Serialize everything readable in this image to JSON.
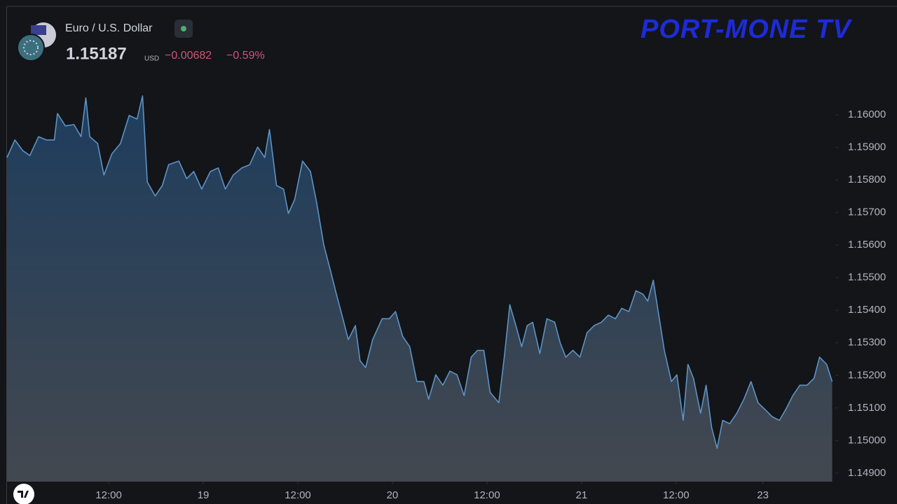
{
  "header": {
    "instrument": "Euro / U.S. Dollar",
    "price": "1.15187",
    "currency": "USD",
    "change": "−0.00682",
    "change_percent": "−0.59%"
  },
  "logo": "PORT-MONE TV",
  "chart_data": {
    "type": "area",
    "color": "#5e93c4",
    "x": [
      -0.9,
      0.1,
      1.1,
      2.0,
      3.1,
      4.1,
      5.1,
      5.5,
      6.5,
      7.6,
      8.5,
      9.1,
      9.6,
      10.6,
      11.4,
      12.4,
      13.5,
      14.6,
      15.6,
      16.3,
      16.9,
      17.9,
      18.8,
      19.6,
      20.9,
      21.9,
      22.8,
      23.8,
      24.9,
      25.9,
      26.8,
      27.8,
      28.9,
      29.9,
      30.9,
      31.8,
      32.4,
      33.3,
      34.2,
      34.8,
      35.6,
      36.6,
      37.6,
      38.4,
      39.3,
      40.0,
      40.9,
      41.6,
      42.4,
      43.3,
      43.9,
      44.6,
      45.5,
      46.7,
      47.6,
      48.4,
      49.3,
      50.2,
      51.1,
      52.0,
      52.6,
      53.5,
      54.4,
      55.3,
      56.2,
      57.1,
      58.0,
      58.8,
      59.6,
      60.4,
      61.5,
      62.2,
      62.9,
      63.8,
      64.4,
      65.1,
      65.8,
      66.7,
      67.6,
      68.6,
      69.3,
      70.0,
      70.9,
      71.8,
      72.7,
      73.6,
      74.5,
      75.4,
      76.3,
      77.1,
      78.0,
      78.9,
      79.8,
      80.4,
      81.1,
      81.8,
      82.5,
      83.4,
      84.1,
      84.9,
      85.5,
      86.2,
      87.1,
      87.8,
      88.5,
      89.2,
      89.9,
      90.8,
      91.7,
      92.6,
      93.5,
      94.4,
      95.3,
      96.2,
      97.1,
      97.9,
      98.8,
      99.7,
      100.6,
      101.5,
      102.2,
      103.1,
      103.8
    ],
    "values": [
      1.15869,
      1.15923,
      1.1589,
      1.15875,
      1.15933,
      1.15923,
      1.15923,
      1.16004,
      1.15966,
      1.1597,
      1.15933,
      1.16052,
      1.15933,
      1.15912,
      1.15815,
      1.1588,
      1.15912,
      1.15998,
      1.15987,
      1.16058,
      1.15794,
      1.15751,
      1.15783,
      1.15847,
      1.15858,
      1.15804,
      1.15826,
      1.15772,
      1.15826,
      1.15837,
      1.15772,
      1.15815,
      1.15837,
      1.15847,
      1.15901,
      1.15869,
      1.15955,
      1.15783,
      1.15772,
      1.15697,
      1.1574,
      1.15858,
      1.15826,
      1.15729,
      1.156,
      1.15535,
      1.15449,
      1.15385,
      1.1531,
      1.15353,
      1.15245,
      1.15224,
      1.1531,
      1.15374,
      1.15374,
      1.15396,
      1.1532,
      1.15288,
      1.15181,
      1.15181,
      1.15127,
      1.15202,
      1.1517,
      1.15213,
      1.15202,
      1.15138,
      1.15256,
      1.15277,
      1.15277,
      1.15148,
      1.15116,
      1.15256,
      1.15417,
      1.15342,
      1.15288,
      1.15353,
      1.15363,
      1.15267,
      1.15374,
      1.15363,
      1.15299,
      1.15256,
      1.15277,
      1.15256,
      1.15331,
      1.15353,
      1.15363,
      1.15385,
      1.15374,
      1.15406,
      1.15396,
      1.1546,
      1.15449,
      1.15428,
      1.15492,
      1.15385,
      1.15277,
      1.15181,
      1.15202,
      1.15062,
      1.15234,
      1.15191,
      1.15084,
      1.1517,
      1.15041,
      1.14976,
      1.15062,
      1.15052,
      1.15084,
      1.15127,
      1.15181,
      1.15116,
      1.15095,
      1.15073,
      1.15062,
      1.15095,
      1.15138,
      1.1517,
      1.1517,
      1.15191,
      1.15256,
      1.15234,
      1.15181
    ],
    "xlim": [
      -0.9,
      104.2
    ],
    "xticks": [
      {
        "value": 12,
        "label": "12:00"
      },
      {
        "value": 24,
        "label": "19"
      },
      {
        "value": 36,
        "label": "12:00"
      },
      {
        "value": 48,
        "label": "20"
      },
      {
        "value": 60,
        "label": "12:00"
      },
      {
        "value": 72,
        "label": "21"
      },
      {
        "value": 84,
        "label": "12:00"
      },
      {
        "value": 95,
        "label": "23"
      }
    ],
    "ylim": [
      1.14874,
      1.16331
    ],
    "yticks": [
      {
        "value": 1.149,
        "label": "1.14900"
      },
      {
        "value": 1.15,
        "label": "1.15000"
      },
      {
        "value": 1.151,
        "label": "1.15100"
      },
      {
        "value": 1.152,
        "label": "1.15200"
      },
      {
        "value": 1.153,
        "label": "1.15300"
      },
      {
        "value": 1.154,
        "label": "1.15400"
      },
      {
        "value": 1.155,
        "label": "1.15500"
      },
      {
        "value": 1.156,
        "label": "1.15600"
      },
      {
        "value": 1.157,
        "label": "1.15700"
      },
      {
        "value": 1.158,
        "label": "1.15800"
      },
      {
        "value": 1.159,
        "label": "1.15900"
      },
      {
        "value": 1.16,
        "label": "1.16000"
      }
    ]
  }
}
